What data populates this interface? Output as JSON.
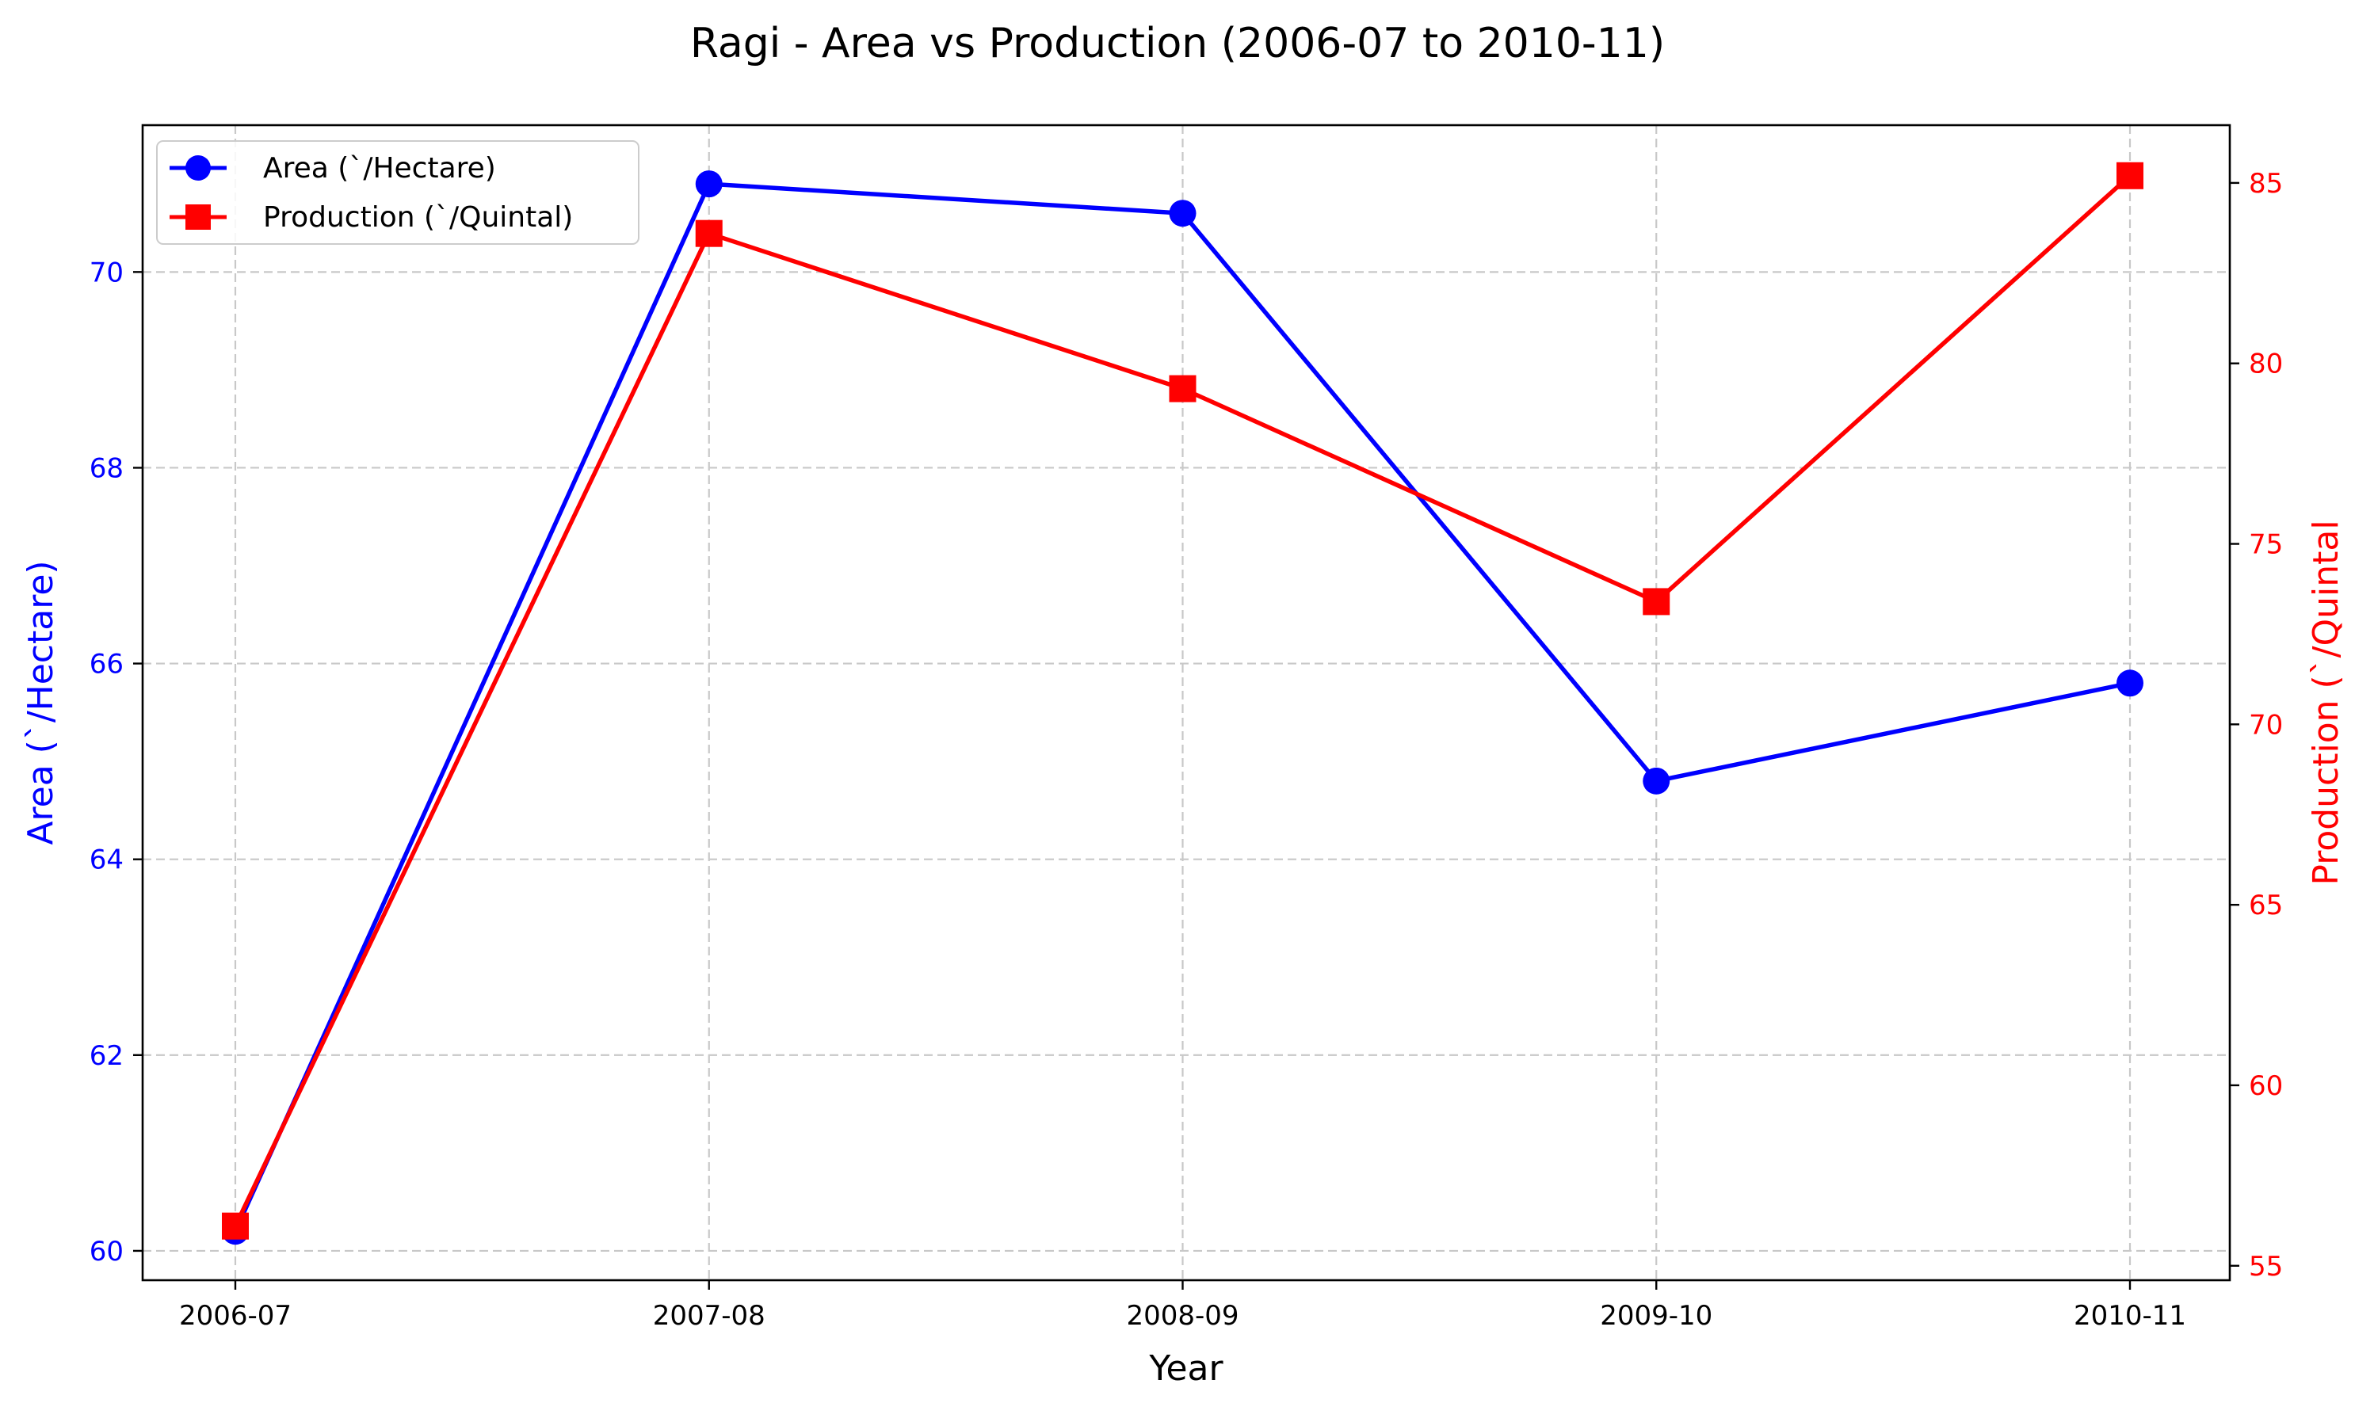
{
  "chart_data": {
    "type": "line",
    "title": "Ragi - Area vs Production (2006-07 to 2010-11)",
    "xlabel": "Year",
    "categories": [
      "2006-07",
      "2007-08",
      "2008-09",
      "2009-10",
      "2010-11"
    ],
    "grid": true,
    "legend_position": "top-left",
    "axes": {
      "left": {
        "label": "Area (`/Hectare)",
        "color": "#0000ff",
        "ylim": [
          59.7,
          71.5
        ],
        "ticks": [
          "60",
          "62",
          "64",
          "66",
          "68",
          "70"
        ]
      },
      "right": {
        "label": "Production (`/Quintal",
        "color": "#ff0000",
        "ylim": [
          54.6,
          86.6
        ],
        "ticks": [
          "55",
          "60",
          "65",
          "70",
          "75",
          "80",
          "85"
        ]
      }
    },
    "series": [
      {
        "name": "Area (`/Hectare)",
        "axis": "left",
        "color": "#0000ff",
        "marker": "circle",
        "values": [
          60.2,
          70.9,
          70.6,
          64.8,
          65.8
        ]
      },
      {
        "name": "Production (`/Quintal)",
        "axis": "right",
        "color": "#ff0000",
        "marker": "square",
        "values": [
          56.1,
          83.6,
          79.3,
          73.4,
          85.2
        ]
      }
    ]
  }
}
